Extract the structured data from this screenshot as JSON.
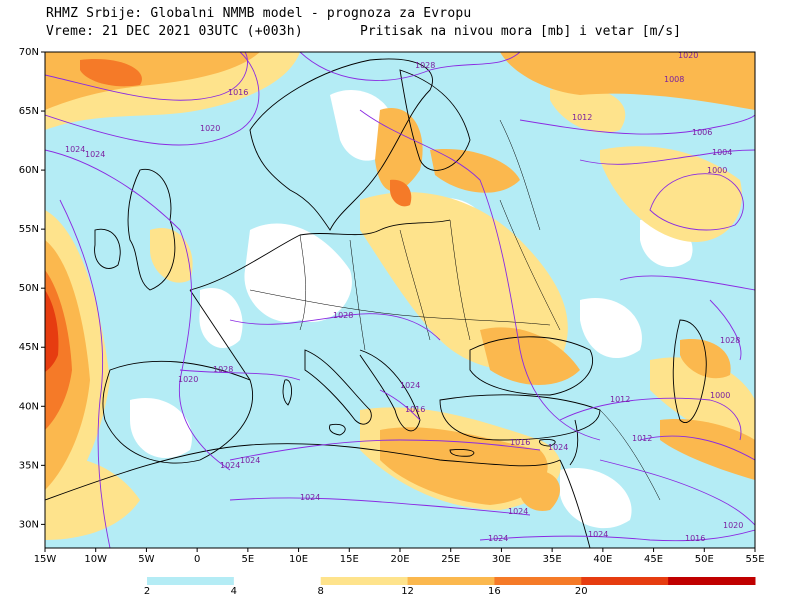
{
  "header": {
    "line1": "RHMZ Srbije: Globalni NMMB model - prognoza za Evropu",
    "line2_left": "Vreme: 21 DEC 2021 03UTC (+003h)",
    "line2_right": "Pritisak na nivou mora [mb] i vetar [m/s]"
  },
  "axes": {
    "lat_labels": [
      "70N",
      "65N",
      "60N",
      "55N",
      "50N",
      "45N",
      "40N",
      "35N",
      "30N"
    ],
    "lon_labels": [
      "15W",
      "10W",
      "5W",
      "0",
      "5E",
      "10E",
      "15E",
      "20E",
      "25E",
      "30E",
      "35E",
      "40E",
      "45E",
      "50E",
      "55E"
    ],
    "lon_range": [
      -15,
      55
    ],
    "lat_range": [
      28,
      70
    ]
  },
  "colorbar": {
    "labels": [
      "2",
      "4",
      "8",
      "12",
      "16",
      "20"
    ],
    "colors": [
      "#b4ecf5",
      "#ffffff",
      "#fee38c",
      "#fbb84e",
      "#f57a28",
      "#e63c10",
      "#c00000"
    ]
  },
  "isobar_labels": [
    "1028",
    "1016",
    "1020",
    "1024",
    "1024",
    "1012",
    "1006",
    "1004",
    "1000",
    "1008",
    "1020",
    "1028",
    "1028",
    "1024",
    "1020",
    "1024",
    "1016",
    "1012",
    "1000",
    "1028",
    "1024",
    "1024",
    "1024",
    "1012",
    "1016",
    "1024",
    "1020",
    "1016",
    "1024",
    "1024"
  ],
  "colors": {
    "land": "#ffffff",
    "coast": "#000000",
    "isobar": "#8a2be2",
    "frame": "#000000"
  }
}
